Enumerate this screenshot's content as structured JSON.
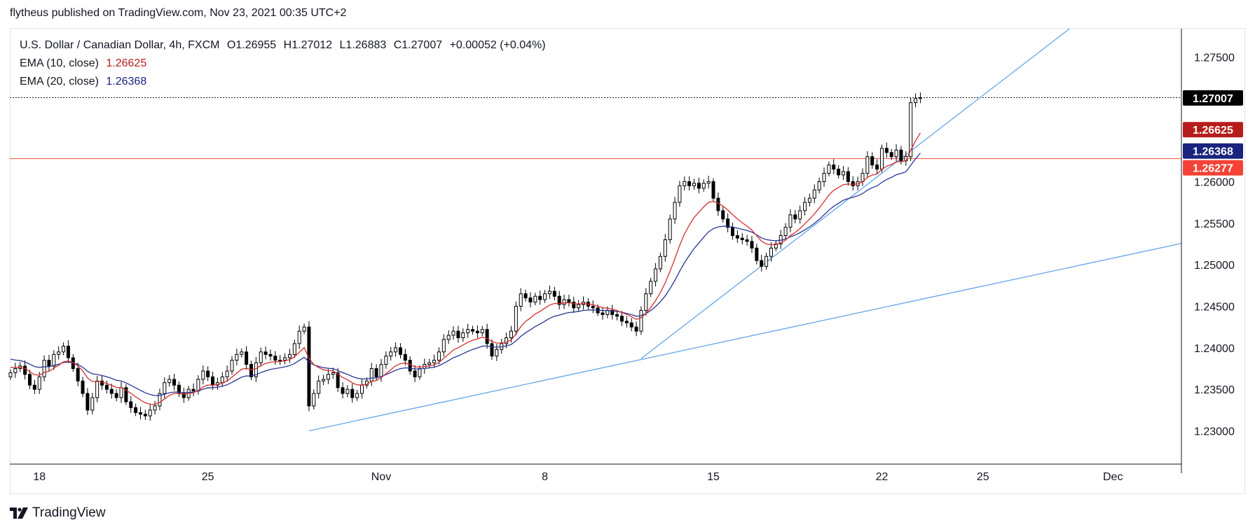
{
  "header": {
    "published_text": "flytheus published on TradingView.com, Nov 23, 2021 00:35 UTC+2"
  },
  "legend": {
    "symbol": "U.S. Dollar / Canadian Dollar, 4h, FXCM",
    "open_label": "O",
    "open": "1.26955",
    "high_label": "H",
    "high": "1.27012",
    "low_label": "L",
    "low": "1.26883",
    "close_label": "C",
    "close": "1.27007",
    "change": "+0.00052 (+0.04%)",
    "ema10_label": "EMA (10, close)",
    "ema10_value": "1.26625",
    "ema20_label": "EMA (20, close)",
    "ema20_value": "1.26368"
  },
  "footer": {
    "logo_text": "TradingView",
    "logo_icon": "tradingview-logo-icon"
  },
  "colors": {
    "up_candle": "#ffffff",
    "down_candle": "#000000",
    "candle_border": "#000000",
    "ema10": "#d32f2f",
    "ema20": "#283593",
    "trendline": "#64a6e8",
    "hline": "#f06b5f",
    "last_price_bg": "#000000",
    "ema10_tag": "#b71c1c",
    "ema20_tag": "#1a237e",
    "hline_tag": "#f44336"
  },
  "chart_data": {
    "type": "candlestick",
    "timeframe": "4h",
    "ylim": [
      1.226,
      1.2784
    ],
    "y_ticks": [
      "1.23000",
      "1.23500",
      "1.24000",
      "1.24500",
      "1.25000",
      "1.25500",
      "1.26000",
      "1.27500"
    ],
    "y_tick_values": [
      1.23,
      1.235,
      1.24,
      1.245,
      1.25,
      1.255,
      1.26,
      1.275
    ],
    "x_ticks": [
      "18",
      "25",
      "Nov",
      "8",
      "15",
      "22",
      "25",
      "Dec"
    ],
    "x_tick_bars": [
      6,
      41,
      77,
      111,
      146,
      181,
      202,
      229
    ],
    "price_tags": [
      {
        "name": "last-price",
        "label": "1.27007",
        "value": 1.27007
      },
      {
        "name": "ema10",
        "label": "1.26625",
        "value": 1.26625
      },
      {
        "name": "ema20",
        "label": "1.26368",
        "value": 1.26368
      },
      {
        "name": "horizontal-level",
        "label": "1.26277",
        "value": 1.26277
      }
    ],
    "horizontal_line": 1.26277,
    "trendlines": [
      {
        "name": "lower-trendline",
        "start": [
          62,
          1.23
        ],
        "end": [
          250,
          1.2534
        ]
      },
      {
        "name": "upper-trendline",
        "start": [
          131,
          1.2387
        ],
        "end": [
          220,
          1.2784
        ]
      }
    ],
    "close": [
      1.237,
      1.2375,
      1.2378,
      1.2368,
      1.2355,
      1.235,
      1.2365,
      1.2385,
      1.2378,
      1.2392,
      1.2395,
      1.2402,
      1.2388,
      1.2375,
      1.236,
      1.2345,
      1.2325,
      1.234,
      1.236,
      1.2355,
      1.235,
      1.2345,
      1.234,
      1.2352,
      1.2335,
      1.2328,
      1.2322,
      1.232,
      1.2318,
      1.2325,
      1.233,
      1.2345,
      1.2358,
      1.2362,
      1.2355,
      1.2345,
      1.234,
      1.235,
      1.2348,
      1.2362,
      1.2372,
      1.2365,
      1.2355,
      1.2358,
      1.2365,
      1.2372,
      1.2385,
      1.2392,
      1.2395,
      1.238,
      1.2365,
      1.2382,
      1.2395,
      1.2392,
      1.239,
      1.2385,
      1.2385,
      1.2388,
      1.2392,
      1.2405,
      1.242,
      1.2425,
      1.233,
      1.2345,
      1.236,
      1.2362,
      1.2368,
      1.237,
      1.2352,
      1.2345,
      1.235,
      1.234,
      1.2345,
      1.2355,
      1.236,
      1.2375,
      1.2365,
      1.238,
      1.239,
      1.2395,
      1.24,
      1.2392,
      1.2385,
      1.2372,
      1.2365,
      1.2375,
      1.238,
      1.2382,
      1.2385,
      1.2395,
      1.241,
      1.2415,
      1.242,
      1.2412,
      1.2418,
      1.2422,
      1.242,
      1.2418,
      1.2422,
      1.2405,
      1.239,
      1.2398,
      1.2405,
      1.2412,
      1.242,
      1.245,
      1.2465,
      1.246,
      1.2455,
      1.2462,
      1.2458,
      1.2465,
      1.2468,
      1.2462,
      1.2452,
      1.2458,
      1.2455,
      1.2448,
      1.2452,
      1.2455,
      1.245,
      1.2448,
      1.2442,
      1.244,
      1.2445,
      1.244,
      1.2438,
      1.2432,
      1.243,
      1.2425,
      1.242,
      1.2445,
      1.2465,
      1.248,
      1.2495,
      1.251,
      1.253,
      1.2555,
      1.2575,
      1.2595,
      1.26,
      1.2595,
      1.2598,
      1.2592,
      1.2598,
      1.26,
      1.258,
      1.2565,
      1.2555,
      1.2545,
      1.2535,
      1.2532,
      1.253,
      1.2528,
      1.252,
      1.2505,
      1.2498,
      1.251,
      1.252,
      1.2525,
      1.2535,
      1.2545,
      1.256,
      1.2555,
      1.2565,
      1.2575,
      1.258,
      1.259,
      1.26,
      1.261,
      1.262,
      1.2615,
      1.2608,
      1.2612,
      1.26,
      1.2595,
      1.26,
      1.261,
      1.263,
      1.262,
      1.2615,
      1.264,
      1.2635,
      1.263,
      1.2638,
      1.2625,
      1.263,
      1.2695,
      1.27,
      1.2701
    ],
    "series": [
      {
        "name": "EMA (10, close)",
        "color": "#d32f2f"
      },
      {
        "name": "EMA (20, close)",
        "color": "#283593"
      }
    ]
  }
}
